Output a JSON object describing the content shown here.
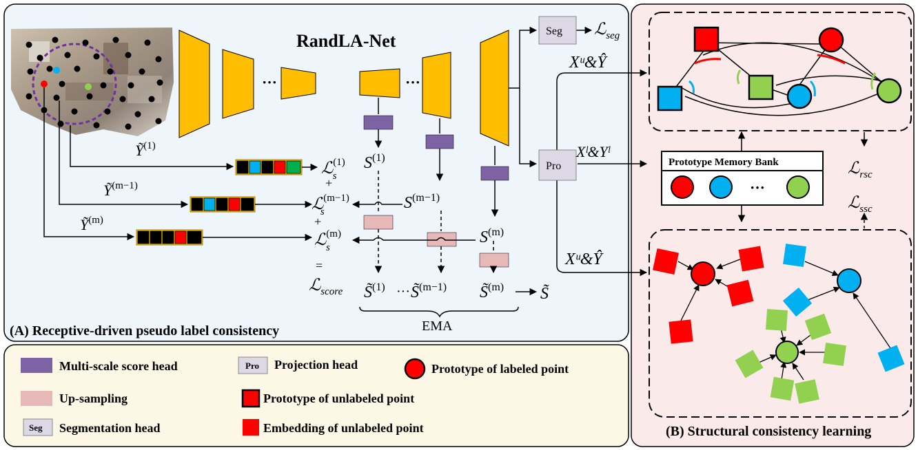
{
  "panel_a": {
    "network_title": "RandLA-Net",
    "caption": "(A) Receptive-driven pseudo label consistency",
    "ellipsis": "···",
    "y_tilde_1": {
      "base": "Ỹ",
      "sup": "(1)"
    },
    "y_tilde_m1": {
      "base": "Ỹ",
      "sup": "(m−1)"
    },
    "y_tilde_m": {
      "base": "Ỹ",
      "sup": "(m)"
    },
    "loss_s1": {
      "base": "ℒ",
      "sub": "s",
      "sup": "(1)"
    },
    "loss_sm1": {
      "base": "ℒ",
      "sub": "s",
      "sup": "(m−1)"
    },
    "loss_sm": {
      "base": "ℒ",
      "sub": "s",
      "sup": "(m)"
    },
    "plus": "+",
    "equals": "=",
    "loss_score": {
      "base": "ℒ",
      "sub": "score"
    },
    "s1": {
      "base": "S",
      "sup": "(1)"
    },
    "sm1": {
      "base": "S",
      "sup": "(m−1)"
    },
    "sm": {
      "base": "S",
      "sup": "(m)"
    },
    "st1": {
      "base": "S̃",
      "sup": "(1)"
    },
    "stm1": {
      "base": "S̃",
      "sup": "(m−1)"
    },
    "stm": {
      "base": "S̃",
      "sup": "(m)"
    },
    "st": "S̃",
    "ema": "EMA",
    "seg_label": "Seg",
    "pro_label": "Pro",
    "loss_seg": {
      "base": "ℒ",
      "sub": "seg"
    },
    "xu_yhat_top": "Xᵘ&Ŷ",
    "xl_yl": "Xˡ&Yˡ",
    "xu_yhat_bottom": "Xᵘ&Ŷ"
  },
  "panel_b": {
    "caption": "(B) Structural consistency learning",
    "memory_bank_title": "Prototype Memory Bank",
    "memory_ellipsis": "···",
    "loss_rsc": {
      "base": "ℒ",
      "sub": "rsc"
    },
    "loss_ssc": {
      "base": "ℒ",
      "sub": "ssc"
    }
  },
  "legend": {
    "items": [
      {
        "label": "Multi-scale score head",
        "symbol": "score-head",
        "color": "#7d63a3"
      },
      {
        "label": "Up-sampling",
        "symbol": "upsample",
        "color": "#e6b8b7"
      },
      {
        "label": "Segmentation head",
        "symbol": "seg-box",
        "box_text": "Seg"
      },
      {
        "label": "Projection head",
        "symbol": "pro-box",
        "box_text": "Pro"
      },
      {
        "label": "Prototype of unlabeled point",
        "symbol": "red-square-outlined",
        "color": "#ff0000"
      },
      {
        "label": "Embedding of unlabeled point",
        "symbol": "red-square",
        "color": "#ff0000"
      },
      {
        "label": "Prototype of labeled point",
        "symbol": "red-circle",
        "color": "#ff0000"
      }
    ]
  },
  "colors": {
    "panel_a_bg": "#eef5fb",
    "panel_b_bg": "#fbeaea",
    "legend_bg": "#fdf8e6",
    "encoder": "#ffbf00",
    "score_head": "#7d63a3",
    "upsample": "#e6b8b7",
    "head_box": "#dcd8e6",
    "red": "#ff0000",
    "blue": "#00b0f0",
    "green": "#92d050",
    "purple_dash": "#7030a0"
  }
}
